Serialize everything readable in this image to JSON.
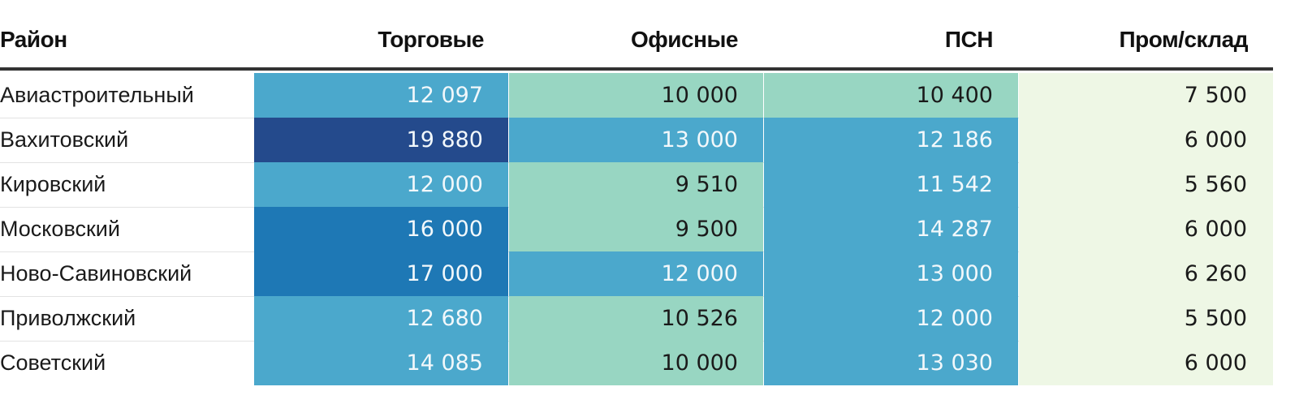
{
  "chart_data": {
    "type": "table",
    "columns": [
      "Район",
      "Торговые",
      "Офисные",
      "ПСН",
      "Пром/склад"
    ],
    "rows": [
      {
        "district": "Авиастроительный",
        "values": [
          12097,
          10000,
          10400,
          7500
        ],
        "labels": [
          "12 097",
          "10 000",
          "10 400",
          "7 500"
        ]
      },
      {
        "district": "Вахитовский",
        "values": [
          19880,
          13000,
          12186,
          6000
        ],
        "labels": [
          "19 880",
          "13 000",
          "12 186",
          "6 000"
        ]
      },
      {
        "district": "Кировский",
        "values": [
          12000,
          9510,
          11542,
          5560
        ],
        "labels": [
          "12 000",
          "9 510",
          "11 542",
          "5 560"
        ]
      },
      {
        "district": "Московский",
        "values": [
          16000,
          9500,
          14287,
          6000
        ],
        "labels": [
          "16 000",
          "9 500",
          "14 287",
          "6 000"
        ]
      },
      {
        "district": "Ново-Савиновский",
        "values": [
          17000,
          12000,
          13000,
          6260
        ],
        "labels": [
          "17 000",
          "12 000",
          "13 000",
          "6 260"
        ]
      },
      {
        "district": "Приволжский",
        "values": [
          12680,
          10526,
          12000,
          5500
        ],
        "labels": [
          "12 680",
          "10 526",
          "12 000",
          "5 500"
        ]
      },
      {
        "district": "Советский",
        "values": [
          14085,
          10000,
          13030,
          6000
        ],
        "labels": [
          "14 085",
          "10 000",
          "13 030",
          "6 000"
        ]
      }
    ],
    "color_scale": [
      {
        "min": 0,
        "max": 8000,
        "color": "#eef7e5",
        "text": "#1a1a1a"
      },
      {
        "min": 8000,
        "max": 11000,
        "color": "#98d6c2",
        "text": "#1a1a1a"
      },
      {
        "min": 11000,
        "max": 15000,
        "color": "#4ba8cc",
        "text": "#f2f8fb"
      },
      {
        "min": 15000,
        "max": 19000,
        "color": "#1e78b5",
        "text": "#f2f8fb"
      },
      {
        "min": 19000,
        "max": 100000,
        "color": "#244a8c",
        "text": "#f2f8fb"
      }
    ]
  }
}
